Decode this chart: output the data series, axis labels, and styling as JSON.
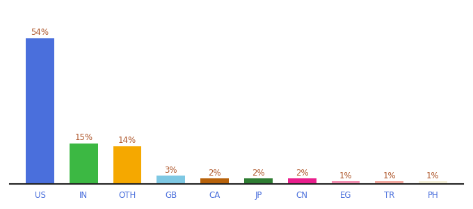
{
  "categories": [
    "US",
    "IN",
    "OTH",
    "GB",
    "CA",
    "JP",
    "CN",
    "EG",
    "TR",
    "PH"
  ],
  "values": [
    54,
    15,
    14,
    3,
    2,
    2,
    2,
    1,
    1,
    1
  ],
  "labels": [
    "54%",
    "15%",
    "14%",
    "3%",
    "2%",
    "2%",
    "2%",
    "1%",
    "1%",
    "1%"
  ],
  "bar_colors": [
    "#4a6fdc",
    "#3cb843",
    "#f5a800",
    "#7ec8e3",
    "#b8620a",
    "#2e7d32",
    "#e91e8c",
    "#f48fb1",
    "#f4a9a0",
    "#f5f0d8"
  ],
  "title_fontsize": 9,
  "label_fontsize": 8.5,
  "tick_fontsize": 8.5,
  "ylim": [
    0,
    62
  ],
  "background_color": "#ffffff",
  "label_color": "#b05a2f",
  "tick_label_color": "#4a6fdc",
  "bottom_line_color": "#222222"
}
